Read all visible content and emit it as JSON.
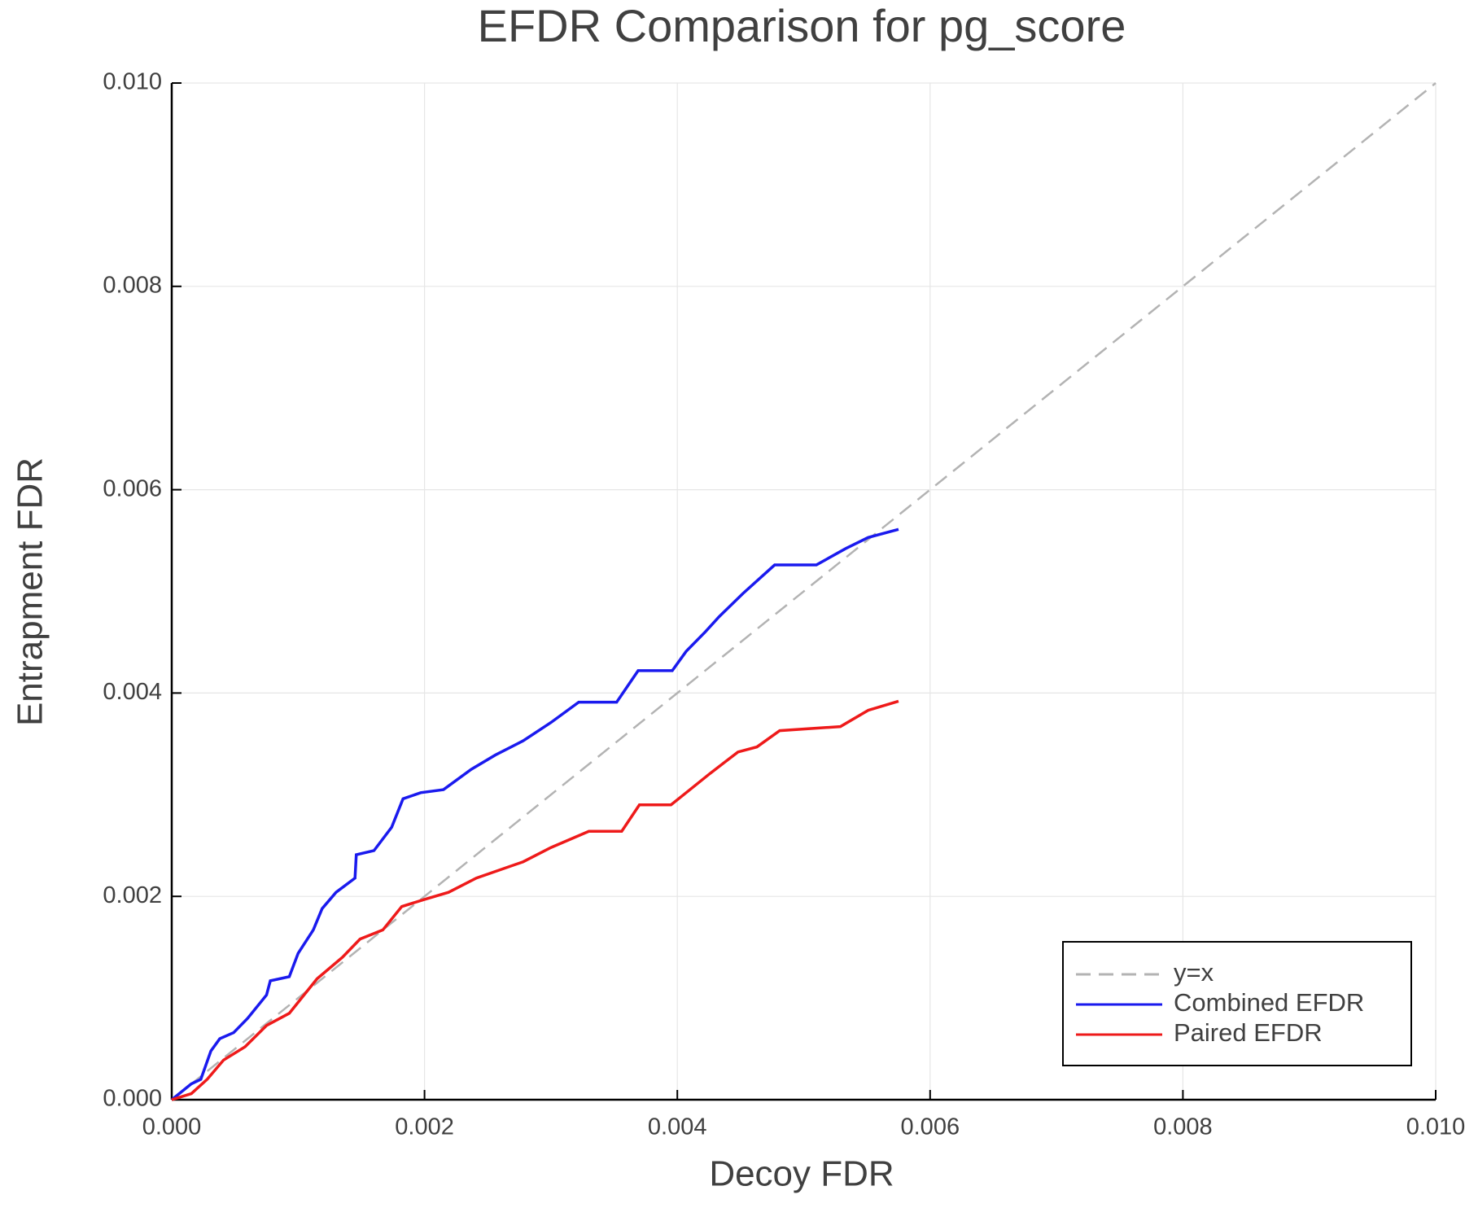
{
  "chart_data": {
    "type": "line",
    "title": "EFDR Comparison for pg_score",
    "xlabel": "Decoy FDR",
    "ylabel": "Entrapment FDR",
    "xlim": [
      0,
      0.01
    ],
    "ylim": [
      0,
      0.01
    ],
    "xticks": [
      {
        "value": 0,
        "label": "0.000"
      },
      {
        "value": 0.002,
        "label": "0.002"
      },
      {
        "value": 0.004,
        "label": "0.004"
      },
      {
        "value": 0.006,
        "label": "0.006"
      },
      {
        "value": 0.008,
        "label": "0.008"
      },
      {
        "value": 0.01,
        "label": "0.010"
      }
    ],
    "yticks": [
      {
        "value": 0,
        "label": "0.000"
      },
      {
        "value": 0.002,
        "label": "0.002"
      },
      {
        "value": 0.004,
        "label": "0.004"
      },
      {
        "value": 0.006,
        "label": "0.006"
      },
      {
        "value": 0.008,
        "label": "0.008"
      },
      {
        "value": 0.01,
        "label": "0.010"
      }
    ],
    "grid": true,
    "legend": "lower right",
    "series": [
      {
        "name": "y=x",
        "color": "#b3b3b3",
        "style": "dashed",
        "x": [
          0,
          0.01
        ],
        "values": [
          0,
          0.01
        ]
      },
      {
        "name": "Combined EFDR",
        "color": "#1a1aee",
        "style": "solid",
        "x": [
          0,
          0.000155,
          0.00023,
          0.00031,
          0.00038,
          0.00049,
          0.0006,
          0.00075,
          0.00078,
          0.00093,
          0.001,
          0.00112,
          0.00119,
          0.0013,
          0.00145,
          0.00146,
          0.0016,
          0.00174,
          0.00183,
          0.00197,
          0.00215,
          0.00237,
          0.00256,
          0.00278,
          0.003,
          0.00322,
          0.00352,
          0.00369,
          0.00396,
          0.00407,
          0.00422,
          0.00433,
          0.00452,
          0.00477,
          0.0051,
          0.00533,
          0.00551,
          0.00575
        ],
        "values": [
          0,
          0.000156,
          0.0002,
          0.00048,
          0.0006,
          0.00066,
          0.0008,
          0.00103,
          0.00117,
          0.00121,
          0.00144,
          0.00167,
          0.00188,
          0.00204,
          0.00218,
          0.00241,
          0.00245,
          0.00268,
          0.00296,
          0.00302,
          0.00305,
          0.00325,
          0.00339,
          0.00353,
          0.00371,
          0.00391,
          0.00391,
          0.00422,
          0.00422,
          0.00441,
          0.0046,
          0.00475,
          0.00498,
          0.00526,
          0.00526,
          0.00542,
          0.00553,
          0.00561
        ]
      },
      {
        "name": "Paired EFDR",
        "color": "#ee1a1a",
        "style": "solid",
        "x": [
          0,
          0.000155,
          0.00028,
          0.00041,
          0.00058,
          0.00075,
          0.00093,
          0.00115,
          0.00135,
          0.00149,
          0.00167,
          0.00182,
          0.002,
          0.00219,
          0.00241,
          0.00278,
          0.003,
          0.0033,
          0.00356,
          0.0037,
          0.00395,
          0.00407,
          0.00426,
          0.00448,
          0.00463,
          0.00481,
          0.00529,
          0.00551,
          0.00575
        ],
        "values": [
          0,
          6e-05,
          0.0002,
          0.00039,
          0.00052,
          0.00073,
          0.00085,
          0.00119,
          0.0014,
          0.00158,
          0.00167,
          0.0019,
          0.00197,
          0.00204,
          0.00218,
          0.00234,
          0.00248,
          0.00264,
          0.00264,
          0.0029,
          0.0029,
          0.00302,
          0.00321,
          0.00342,
          0.00347,
          0.00363,
          0.00367,
          0.00383,
          0.00392
        ]
      }
    ]
  }
}
